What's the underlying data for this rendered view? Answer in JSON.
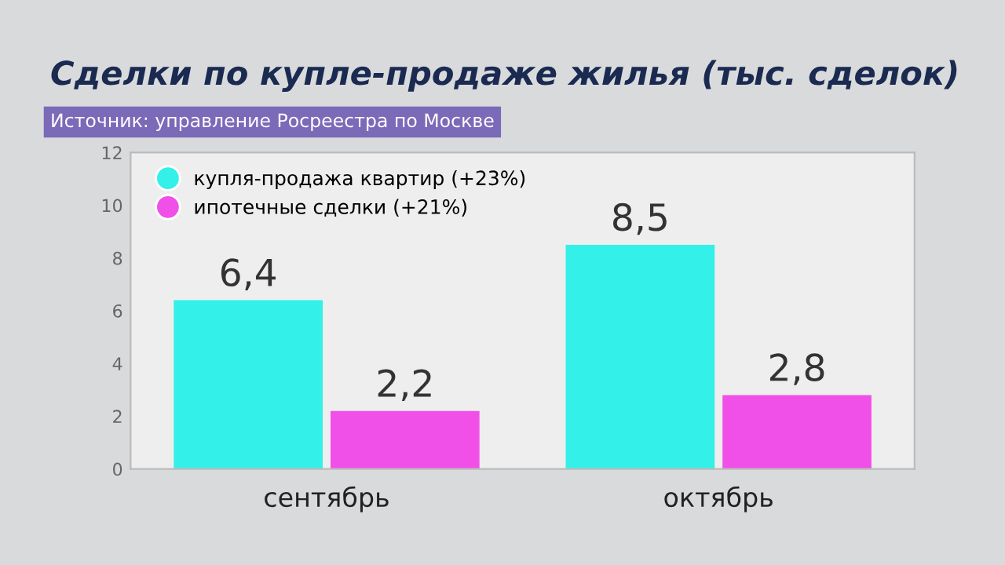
{
  "chart_data": {
    "type": "bar",
    "title": "Сделки по купле-продаже жилья (тыс. сделок)",
    "subtitle": "Источник: управление Росреестра по Москве",
    "categories": [
      "сентябрь",
      "октябрь"
    ],
    "series": [
      {
        "name": "купля-продажа квартир (+23%)",
        "color": "#33f0e8",
        "values": [
          6.4,
          8.5
        ],
        "value_labels": [
          "6,4",
          "8,5"
        ]
      },
      {
        "name": "ипотечные сделки (+21%)",
        "color": "#f050e8",
        "values": [
          2.2,
          2.8
        ],
        "value_labels": [
          "2,2",
          "2,8"
        ]
      }
    ],
    "ylim": [
      0,
      12
    ],
    "yticks": [
      0,
      2,
      4,
      6,
      8,
      10,
      12
    ],
    "grid": false,
    "legend": "top left"
  }
}
